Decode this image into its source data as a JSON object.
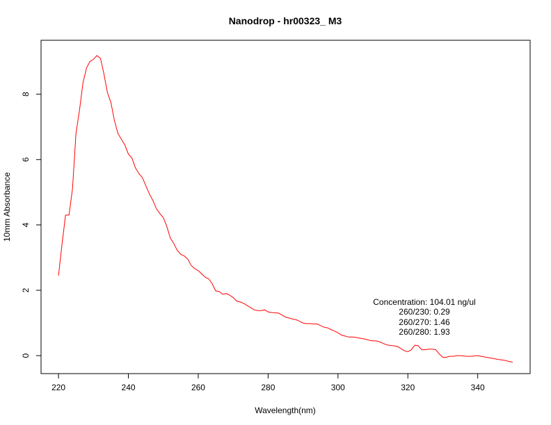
{
  "chart_data": {
    "type": "line",
    "title": "Nanodrop - hr00323_  M3",
    "xlabel": "Wavelength(nm)",
    "ylabel": "10mm Absorbance",
    "xlim": [
      215,
      355
    ],
    "ylim": [
      -0.55,
      9.65
    ],
    "xticks": [
      220,
      240,
      260,
      280,
      300,
      320,
      340
    ],
    "yticks": [
      0,
      2,
      4,
      6,
      8
    ],
    "grid": false,
    "line_color": "#ff0000",
    "series": [
      {
        "x": [
          220,
          221,
          222,
          223,
          224,
          225,
          226,
          227,
          228,
          229,
          230,
          231,
          232,
          233,
          234,
          235,
          236,
          237,
          238,
          239,
          240,
          241,
          242,
          243,
          244,
          245,
          246,
          247,
          248,
          249,
          250,
          251,
          252,
          253,
          254,
          255,
          256,
          257,
          258,
          259,
          260,
          261,
          262,
          263,
          264,
          265,
          266,
          267,
          268,
          269,
          270,
          271,
          272,
          273,
          274,
          275,
          276,
          277,
          278,
          279,
          280,
          281,
          282,
          283,
          284,
          285,
          286,
          287,
          288,
          289,
          290,
          291,
          292,
          293,
          294,
          295,
          296,
          297,
          298,
          299,
          300,
          301,
          302,
          303,
          304,
          305,
          306,
          307,
          308,
          309,
          310,
          311,
          312,
          313,
          314,
          315,
          316,
          317,
          318,
          319,
          320,
          321,
          322,
          323,
          324,
          325,
          326,
          327,
          328,
          329,
          330,
          331,
          332,
          333,
          334,
          335,
          336,
          337,
          338,
          339,
          340,
          341,
          342,
          343,
          344,
          345,
          346,
          347,
          348,
          349,
          350
        ],
        "y": [
          2.45,
          3.4,
          4.3,
          4.3,
          5.1,
          6.8,
          7.5,
          8.35,
          8.8,
          9.0,
          9.07,
          9.18,
          9.1,
          8.62,
          8.05,
          7.75,
          7.2,
          6.8,
          6.62,
          6.45,
          6.17,
          6.05,
          5.75,
          5.57,
          5.45,
          5.2,
          4.95,
          4.75,
          4.5,
          4.35,
          4.22,
          3.95,
          3.6,
          3.43,
          3.22,
          3.1,
          3.05,
          2.95,
          2.76,
          2.66,
          2.6,
          2.5,
          2.4,
          2.35,
          2.2,
          1.98,
          1.96,
          1.88,
          1.9,
          1.85,
          1.78,
          1.67,
          1.64,
          1.6,
          1.53,
          1.47,
          1.4,
          1.38,
          1.38,
          1.4,
          1.34,
          1.32,
          1.31,
          1.3,
          1.24,
          1.18,
          1.15,
          1.12,
          1.1,
          1.05,
          1.0,
          0.98,
          0.98,
          0.97,
          0.97,
          0.92,
          0.87,
          0.85,
          0.8,
          0.75,
          0.7,
          0.63,
          0.6,
          0.57,
          0.57,
          0.56,
          0.54,
          0.52,
          0.5,
          0.47,
          0.45,
          0.45,
          0.42,
          0.37,
          0.33,
          0.31,
          0.3,
          0.28,
          0.22,
          0.15,
          0.12,
          0.18,
          0.32,
          0.3,
          0.18,
          0.18,
          0.2,
          0.2,
          0.18,
          0.05,
          -0.05,
          -0.05,
          -0.02,
          -0.02,
          0.0,
          0.0,
          -0.01,
          -0.02,
          -0.02,
          -0.01,
          0.0,
          -0.02,
          -0.04,
          -0.06,
          -0.08,
          -0.1,
          -0.12,
          -0.13,
          -0.15,
          -0.18,
          -0.2
        ]
      }
    ],
    "annotations": [
      "Concentration: 104.01 ng/ul",
      "260/230: 0.29",
      "260/270: 1.46",
      "260/280: 1.93"
    ]
  }
}
